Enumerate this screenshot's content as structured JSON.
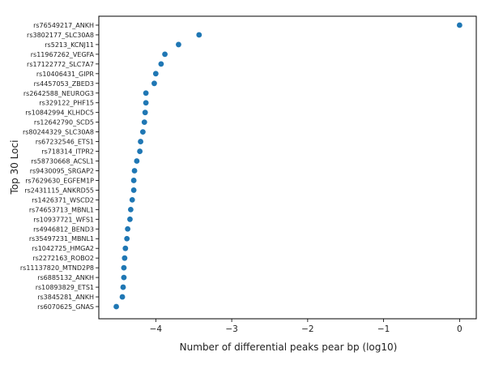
{
  "chart_data": {
    "type": "scatter",
    "title": "",
    "xlabel": "Number of differential peaks pear bp (log10)",
    "ylabel": "Top 30 Loci",
    "xlim": [
      -4.75,
      0.22
    ],
    "x_ticks": [
      -4,
      -3,
      -2,
      -1,
      0
    ],
    "x_tick_labels": [
      "−4",
      "−3",
      "−2",
      "−1",
      "0"
    ],
    "grid": false,
    "legend": "none",
    "marker_color": "#1f77b4",
    "points": [
      {
        "label": "rs76549217_ANKH",
        "x": 0.0
      },
      {
        "label": "rs3802177_SLC30A8",
        "x": -3.43
      },
      {
        "label": "rs5213_KCNJ11",
        "x": -3.7
      },
      {
        "label": "rs11967262_VEGFA",
        "x": -3.88
      },
      {
        "label": "rs17122772_SLC7A7",
        "x": -3.93
      },
      {
        "label": "rs10406431_GIPR",
        "x": -4.0
      },
      {
        "label": "rs4457053_ZBED3",
        "x": -4.02
      },
      {
        "label": "rs2642588_NEUROG3",
        "x": -4.13
      },
      {
        "label": "rs329122_PHF15",
        "x": -4.13
      },
      {
        "label": "rs10842994_KLHDC5",
        "x": -4.14
      },
      {
        "label": "rs12642790_SCD5",
        "x": -4.15
      },
      {
        "label": "rs80244329_SLC30A8",
        "x": -4.17
      },
      {
        "label": "rs67232546_ETS1",
        "x": -4.2
      },
      {
        "label": "rs718314_ITPR2",
        "x": -4.21
      },
      {
        "label": "rs58730668_ACSL1",
        "x": -4.25
      },
      {
        "label": "rs9430095_SRGAP2",
        "x": -4.28
      },
      {
        "label": "rs7629630_EGFEM1P",
        "x": -4.29
      },
      {
        "label": "rs2431115_ANKRD55",
        "x": -4.29
      },
      {
        "label": "rs1426371_WSCD2",
        "x": -4.31
      },
      {
        "label": "rs74653713_MBNL1",
        "x": -4.33
      },
      {
        "label": "rs10937721_WFS1",
        "x": -4.34
      },
      {
        "label": "rs4946812_BEND3",
        "x": -4.37
      },
      {
        "label": "rs35497231_MBNL1",
        "x": -4.38
      },
      {
        "label": "rs1042725_HMGA2",
        "x": -4.4
      },
      {
        "label": "rs2272163_ROBO2",
        "x": -4.41
      },
      {
        "label": "rs11137820_MTND2P8",
        "x": -4.42
      },
      {
        "label": "rs6885132_ANKH",
        "x": -4.42
      },
      {
        "label": "rs10893829_ETS1",
        "x": -4.43
      },
      {
        "label": "rs3845281_ANKH",
        "x": -4.44
      },
      {
        "label": "rs6070625_GNAS",
        "x": -4.52
      }
    ]
  }
}
